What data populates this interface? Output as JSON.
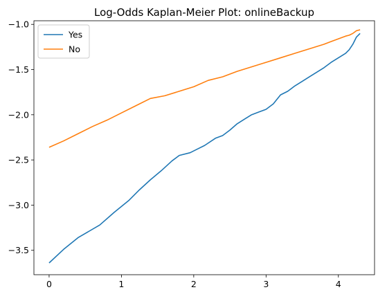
{
  "chart_data": {
    "type": "line",
    "title": "Log-Odds Kaplan-Meier Plot: onlineBackup",
    "xlabel": "",
    "ylabel": "",
    "xlim": [
      -0.21,
      4.5
    ],
    "ylim": [
      -3.77,
      -0.96
    ],
    "xticks": [
      0,
      1,
      2,
      3,
      4
    ],
    "yticks": [
      -3.5,
      -3.0,
      -2.5,
      -2.0,
      -1.5,
      -1.0
    ],
    "xtick_labels": [
      "0",
      "1",
      "2",
      "3",
      "4"
    ],
    "ytick_labels": [
      "−3.5",
      "−3.0",
      "−2.5",
      "−2.0",
      "−1.5",
      "−1.0"
    ],
    "grid": false,
    "legend_position": "top-left",
    "series": [
      {
        "name": "Yes",
        "color": "#1f77b4",
        "x": [
          0,
          0.2,
          0.4,
          0.7,
          0.9,
          1.1,
          1.25,
          1.4,
          1.55,
          1.7,
          1.8,
          1.95,
          2.05,
          2.15,
          2.3,
          2.4,
          2.5,
          2.6,
          2.7,
          2.8,
          2.9,
          3.0,
          3.1,
          3.2,
          3.3,
          3.4,
          3.5,
          3.6,
          3.7,
          3.8,
          3.9,
          4.0,
          4.1,
          4.15,
          4.2,
          4.25,
          4.3
        ],
        "y": [
          -3.64,
          -3.49,
          -3.36,
          -3.22,
          -3.08,
          -2.95,
          -2.83,
          -2.72,
          -2.62,
          -2.51,
          -2.45,
          -2.42,
          -2.38,
          -2.34,
          -2.26,
          -2.23,
          -2.17,
          -2.1,
          -2.05,
          -2.0,
          -1.97,
          -1.94,
          -1.88,
          -1.78,
          -1.74,
          -1.68,
          -1.63,
          -1.58,
          -1.53,
          -1.48,
          -1.42,
          -1.37,
          -1.32,
          -1.28,
          -1.22,
          -1.14,
          -1.1
        ]
      },
      {
        "name": "No",
        "color": "#ff7f0e",
        "x": [
          0,
          0.2,
          0.4,
          0.6,
          0.8,
          1.0,
          1.2,
          1.4,
          1.6,
          1.8,
          2.0,
          2.2,
          2.4,
          2.6,
          2.8,
          3.0,
          3.2,
          3.4,
          3.6,
          3.8,
          3.9,
          4.0,
          4.1,
          4.15,
          4.2,
          4.25,
          4.3
        ],
        "y": [
          -2.36,
          -2.29,
          -2.21,
          -2.13,
          -2.06,
          -1.98,
          -1.9,
          -1.82,
          -1.79,
          -1.74,
          -1.69,
          -1.62,
          -1.58,
          -1.52,
          -1.47,
          -1.42,
          -1.37,
          -1.32,
          -1.27,
          -1.22,
          -1.19,
          -1.16,
          -1.13,
          -1.12,
          -1.1,
          -1.07,
          -1.06
        ]
      }
    ]
  }
}
